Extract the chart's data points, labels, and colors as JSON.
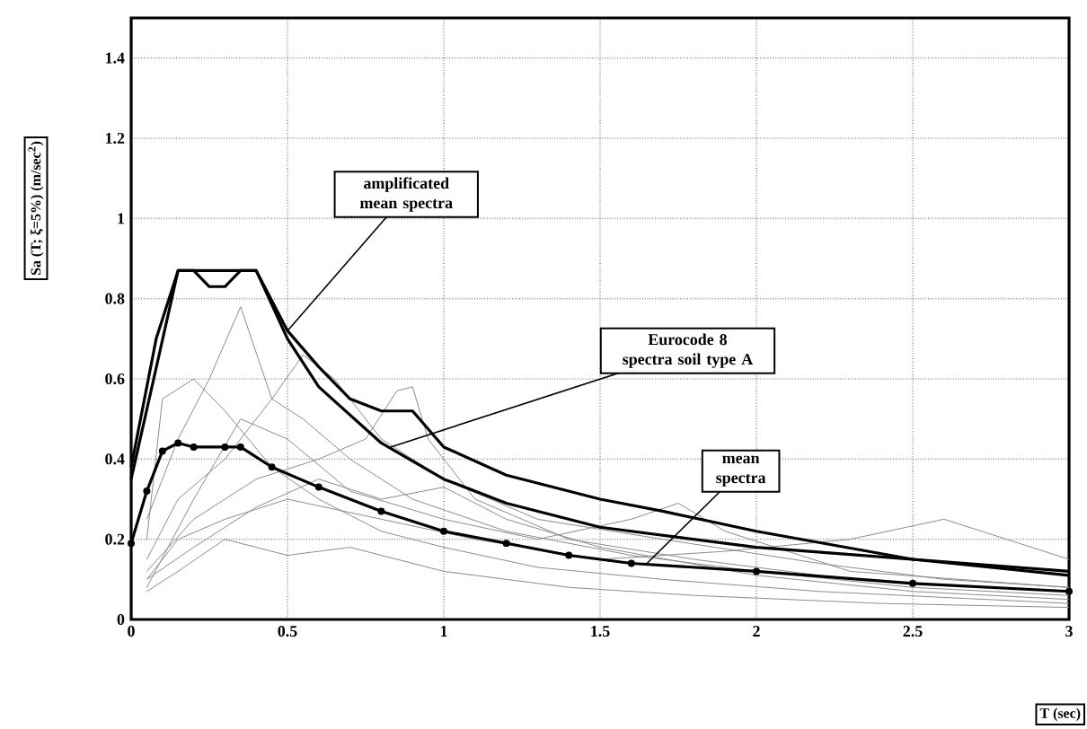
{
  "chart_data": {
    "type": "line",
    "xlabel": "T (sec)",
    "ylabel": "Sa (T; ξ=5%)  (m/sec$^{2}$)",
    "xlim": [
      0,
      3
    ],
    "ylim": [
      0,
      1.5
    ],
    "xticks": [
      0,
      0.5,
      1,
      1.5,
      2,
      2.5,
      3
    ],
    "yticks": [
      0,
      0.2,
      0.4,
      0.6,
      0.8,
      1,
      1.2,
      1.4
    ],
    "grid": true,
    "line_style": "solid",
    "annotations": [
      {
        "text": "amplificated mean spectra",
        "x": 0.5,
        "y": 0.72
      },
      {
        "text": "Eurocode 8 spectra soil type A",
        "x": 0.83,
        "y": 0.43
      },
      {
        "text": "mean spectra",
        "x": 1.65,
        "y": 0.14
      }
    ],
    "series": [
      {
        "color": "#8c8c8c",
        "x": [
          0.05,
          0.15,
          0.25,
          0.35,
          0.45,
          0.55,
          0.7,
          0.9,
          1.2,
          1.6,
          2.0,
          2.5,
          3.0
        ],
        "values": [
          0.25,
          0.45,
          0.6,
          0.78,
          0.55,
          0.5,
          0.4,
          0.3,
          0.22,
          0.16,
          0.12,
          0.08,
          0.06
        ]
      },
      {
        "color": "#8c8c8c",
        "x": [
          0.05,
          0.15,
          0.3,
          0.45,
          0.55,
          0.65,
          0.8,
          1.0,
          1.3,
          1.7,
          2.2,
          2.6,
          3.0
        ],
        "values": [
          0.15,
          0.3,
          0.4,
          0.55,
          0.66,
          0.6,
          0.45,
          0.35,
          0.25,
          0.2,
          0.14,
          0.1,
          0.08
        ]
      },
      {
        "color": "#8c8c8c",
        "x": [
          0.05,
          0.2,
          0.4,
          0.6,
          0.75,
          0.85,
          0.9,
          0.95,
          1.1,
          1.4,
          1.8,
          2.3,
          3.0
        ],
        "values": [
          0.12,
          0.25,
          0.35,
          0.4,
          0.45,
          0.57,
          0.58,
          0.45,
          0.3,
          0.2,
          0.15,
          0.1,
          0.07
        ]
      },
      {
        "color": "#8c8c8c",
        "x": [
          0.05,
          0.15,
          0.3,
          0.5,
          0.8,
          1.1,
          1.5,
          1.9,
          2.3,
          2.6,
          2.8,
          3.0
        ],
        "values": [
          0.1,
          0.2,
          0.25,
          0.3,
          0.25,
          0.2,
          0.15,
          0.17,
          0.2,
          0.25,
          0.2,
          0.15
        ]
      },
      {
        "color": "#8c8c8c",
        "x": [
          0.05,
          0.2,
          0.35,
          0.5,
          0.7,
          1.0,
          1.3,
          1.6,
          1.75,
          1.9,
          2.3,
          3.0
        ],
        "values": [
          0.08,
          0.3,
          0.5,
          0.45,
          0.32,
          0.25,
          0.2,
          0.25,
          0.29,
          0.22,
          0.12,
          0.08
        ]
      },
      {
        "color": "#8c8c8c",
        "x": [
          0.05,
          0.15,
          0.3,
          0.5,
          0.7,
          1.0,
          1.4,
          1.8,
          2.4,
          3.0
        ],
        "values": [
          0.07,
          0.12,
          0.2,
          0.16,
          0.18,
          0.12,
          0.08,
          0.06,
          0.04,
          0.03
        ]
      },
      {
        "color": "#8c8c8c",
        "x": [
          0.05,
          0.1,
          0.2,
          0.3,
          0.45,
          0.6,
          0.8,
          1.0,
          1.3,
          1.7,
          2.2,
          3.0
        ],
        "values": [
          0.2,
          0.55,
          0.6,
          0.52,
          0.38,
          0.3,
          0.22,
          0.18,
          0.13,
          0.1,
          0.07,
          0.04
        ]
      },
      {
        "color": "#8c8c8c",
        "x": [
          0.05,
          0.2,
          0.4,
          0.6,
          0.8,
          1.0,
          1.2,
          1.5,
          2.0,
          2.5,
          3.0
        ],
        "values": [
          0.1,
          0.18,
          0.28,
          0.35,
          0.3,
          0.33,
          0.25,
          0.18,
          0.11,
          0.07,
          0.05
        ]
      },
      {
        "color": "#000000",
        "x": [
          0,
          0.15,
          0.4,
          0.5,
          0.6,
          0.8,
          1.0,
          1.2,
          1.5,
          2.0,
          2.5,
          3.0
        ],
        "values": [
          0.35,
          0.87,
          0.87,
          0.7,
          0.58,
          0.44,
          0.35,
          0.29,
          0.23,
          0.18,
          0.15,
          0.12
        ]
      },
      {
        "color": "#000000",
        "x": [
          0,
          0.08,
          0.15,
          0.2,
          0.25,
          0.3,
          0.35,
          0.4,
          0.5,
          0.6,
          0.7,
          0.8,
          0.9,
          1.0,
          1.2,
          1.5,
          1.7,
          2.0,
          2.5,
          3.0
        ],
        "values": [
          0.38,
          0.7,
          0.87,
          0.87,
          0.83,
          0.83,
          0.87,
          0.87,
          0.72,
          0.63,
          0.55,
          0.52,
          0.52,
          0.43,
          0.36,
          0.3,
          0.27,
          0.22,
          0.15,
          0.11
        ]
      },
      {
        "color": "#000000",
        "marker": "circle",
        "x": [
          0,
          0.05,
          0.1,
          0.15,
          0.2,
          0.3,
          0.35,
          0.45,
          0.6,
          0.8,
          1.0,
          1.2,
          1.4,
          1.6,
          2.0,
          2.5,
          3.0
        ],
        "values": [
          0.19,
          0.32,
          0.42,
          0.44,
          0.43,
          0.43,
          0.43,
          0.38,
          0.33,
          0.27,
          0.22,
          0.19,
          0.16,
          0.14,
          0.12,
          0.09,
          0.07
        ]
      }
    ]
  }
}
